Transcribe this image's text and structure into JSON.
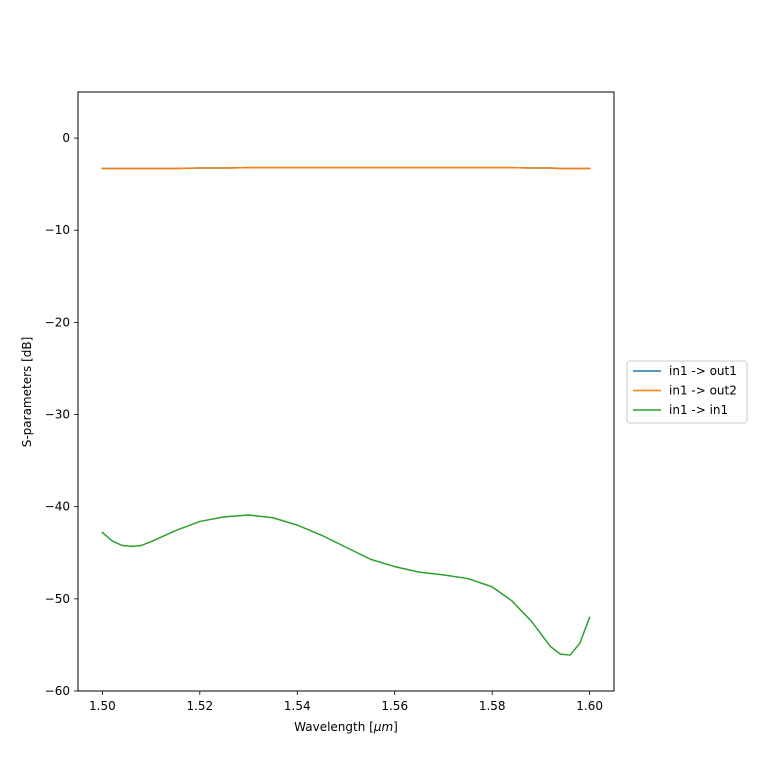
{
  "chart_data": {
    "type": "line",
    "title": "",
    "xlabel_prefix": "Wavelength [",
    "xlabel_unit": "μm",
    "xlabel_suffix": "]",
    "ylabel": "S-parameters [dB]",
    "xlim": [
      1.495,
      1.605
    ],
    "ylim": [
      -60,
      5
    ],
    "xticks": [
      1.5,
      1.52,
      1.54,
      1.56,
      1.58,
      1.6
    ],
    "xtick_labels": [
      "1.50",
      "1.52",
      "1.54",
      "1.56",
      "1.58",
      "1.60"
    ],
    "yticks": [
      0,
      -10,
      -20,
      -30,
      -40,
      -50,
      -60
    ],
    "ytick_labels": [
      "0",
      "−10",
      "−20",
      "−30",
      "−40",
      "−50",
      "−60"
    ],
    "grid": false,
    "legend_position": "outside-right",
    "x": [
      1.5,
      1.502,
      1.504,
      1.506,
      1.508,
      1.51,
      1.515,
      1.52,
      1.525,
      1.53,
      1.535,
      1.54,
      1.545,
      1.55,
      1.555,
      1.56,
      1.565,
      1.57,
      1.575,
      1.58,
      1.584,
      1.588,
      1.59,
      1.592,
      1.594,
      1.596,
      1.598,
      1.6
    ],
    "series": [
      {
        "name": "in1 -> out1",
        "color": "#1f77b4",
        "values": [
          -3.3,
          -3.3,
          -3.3,
          -3.3,
          -3.3,
          -3.3,
          -3.3,
          -3.25,
          -3.25,
          -3.2,
          -3.2,
          -3.2,
          -3.2,
          -3.2,
          -3.2,
          -3.2,
          -3.2,
          -3.2,
          -3.2,
          -3.2,
          -3.2,
          -3.25,
          -3.25,
          -3.25,
          -3.3,
          -3.3,
          -3.3,
          -3.3
        ]
      },
      {
        "name": "in1 -> out2",
        "color": "#ff7f0e",
        "values": [
          -3.3,
          -3.3,
          -3.3,
          -3.3,
          -3.3,
          -3.3,
          -3.3,
          -3.25,
          -3.25,
          -3.2,
          -3.2,
          -3.2,
          -3.2,
          -3.2,
          -3.2,
          -3.2,
          -3.2,
          -3.2,
          -3.2,
          -3.2,
          -3.2,
          -3.25,
          -3.25,
          -3.25,
          -3.3,
          -3.3,
          -3.3,
          -3.3
        ]
      },
      {
        "name": "in1 -> in1",
        "color": "#2ca02c",
        "values": [
          -42.8,
          -43.7,
          -44.2,
          -44.3,
          -44.2,
          -43.8,
          -42.6,
          -41.6,
          -41.1,
          -40.9,
          -41.2,
          -42.0,
          -43.1,
          -44.4,
          -45.7,
          -46.5,
          -47.1,
          -47.4,
          -47.8,
          -48.7,
          -50.2,
          -52.4,
          -53.8,
          -55.2,
          -56.0,
          -56.1,
          -54.8,
          -52.0
        ]
      }
    ]
  }
}
